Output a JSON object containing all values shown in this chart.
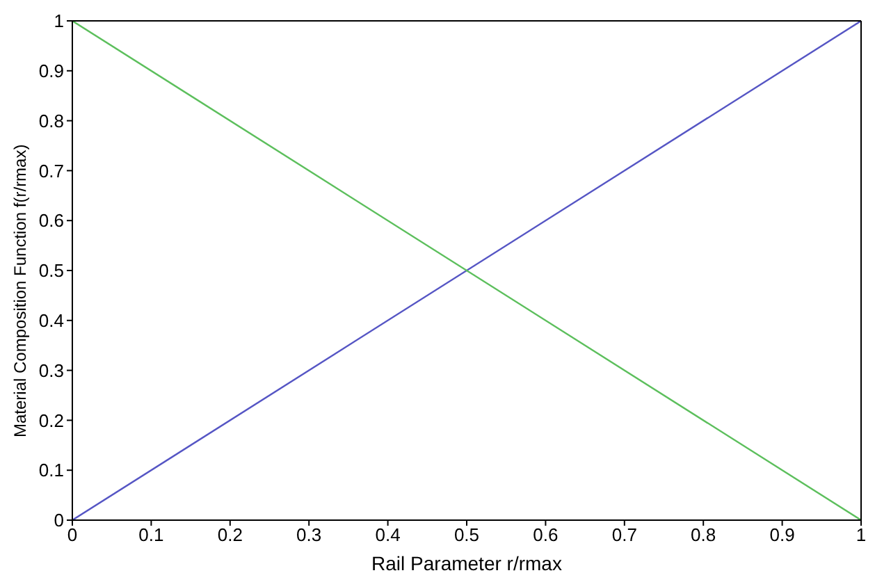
{
  "chart_data": {
    "type": "line",
    "xlabel": "Rail Parameter r/rmax",
    "ylabel": "Material Composition Function f(r/rmax)",
    "x": [
      0,
      1
    ],
    "series": [
      {
        "color": "#5555c4",
        "values": [
          0,
          1
        ]
      },
      {
        "color": "#5cbf5c",
        "values": [
          1,
          0
        ]
      }
    ],
    "xlim": [
      0,
      1
    ],
    "ylim": [
      0,
      1
    ],
    "xticks": [
      0,
      0.1,
      0.2,
      0.3,
      0.4,
      0.5,
      0.6,
      0.7,
      0.8,
      0.9,
      1
    ],
    "yticks": [
      0,
      0.1,
      0.2,
      0.3,
      0.4,
      0.5,
      0.6,
      0.7,
      0.8,
      0.9,
      1
    ],
    "grid": false,
    "legend": false,
    "marker": "none",
    "line_style": "solid"
  }
}
